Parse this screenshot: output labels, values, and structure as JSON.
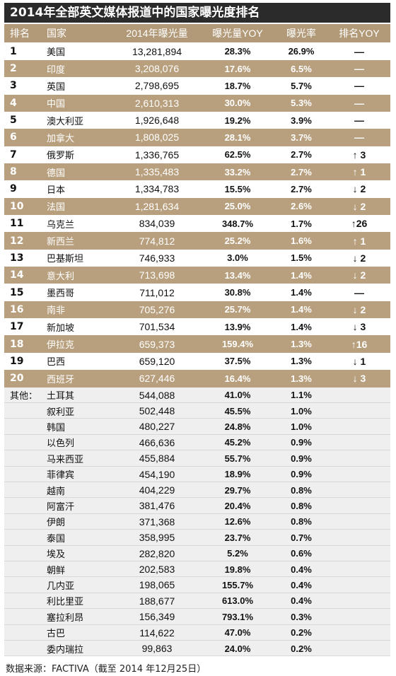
{
  "title": "2014年全部英文媒体报道中的国家曝光度排名",
  "headers": {
    "rank": "排名",
    "country": "国家",
    "exposure": "2014年曝光量",
    "exposure_yoy": "曝光量YOY",
    "rate": "曝光率",
    "rank_yoy": "排名YOY"
  },
  "top20": [
    {
      "rank": "1",
      "country": "美国",
      "exposure": "13,281,894",
      "yoy": "28.3%",
      "rate": "26.9%",
      "rank_yoy": "—"
    },
    {
      "rank": "2",
      "country": "印度",
      "exposure": "3,208,076",
      "yoy": "17.6%",
      "rate": "6.5%",
      "rank_yoy": "—"
    },
    {
      "rank": "3",
      "country": "英国",
      "exposure": "2,798,695",
      "yoy": "18.7%",
      "rate": "5.7%",
      "rank_yoy": "—"
    },
    {
      "rank": "4",
      "country": "中国",
      "exposure": "2,610,313",
      "yoy": "30.0%",
      "rate": "5.3%",
      "rank_yoy": "—"
    },
    {
      "rank": "5",
      "country": "澳大利亚",
      "exposure": "1,926,648",
      "yoy": "19.2%",
      "rate": "3.9%",
      "rank_yoy": "—"
    },
    {
      "rank": "6",
      "country": "加拿大",
      "exposure": "1,808,025",
      "yoy": "28.1%",
      "rate": "3.7%",
      "rank_yoy": "—"
    },
    {
      "rank": "7",
      "country": "俄罗斯",
      "exposure": "1,336,765",
      "yoy": "62.5%",
      "rate": "2.7%",
      "rank_yoy": "↑ 3"
    },
    {
      "rank": "8",
      "country": "德国",
      "exposure": "1,335,483",
      "yoy": "33.2%",
      "rate": "2.7%",
      "rank_yoy": "↑ 1"
    },
    {
      "rank": "9",
      "country": "日本",
      "exposure": "1,334,783",
      "yoy": "15.5%",
      "rate": "2.7%",
      "rank_yoy": "↓ 2"
    },
    {
      "rank": "10",
      "country": "法国",
      "exposure": "1,281,634",
      "yoy": "25.0%",
      "rate": "2.6%",
      "rank_yoy": "↓ 2"
    },
    {
      "rank": "11",
      "country": "乌克兰",
      "exposure": "834,039",
      "yoy": "348.7%",
      "rate": "1.7%",
      "rank_yoy": "↑26"
    },
    {
      "rank": "12",
      "country": "新西兰",
      "exposure": "774,812",
      "yoy": "25.2%",
      "rate": "1.6%",
      "rank_yoy": "↑ 1"
    },
    {
      "rank": "13",
      "country": "巴基斯坦",
      "exposure": "746,933",
      "yoy": "3.0%",
      "rate": "1.5%",
      "rank_yoy": "↓ 2"
    },
    {
      "rank": "14",
      "country": "意大利",
      "exposure": "713,698",
      "yoy": "13.4%",
      "rate": "1.4%",
      "rank_yoy": "↓ 2"
    },
    {
      "rank": "15",
      "country": "墨西哥",
      "exposure": "711,012",
      "yoy": "30.8%",
      "rate": "1.4%",
      "rank_yoy": "—"
    },
    {
      "rank": "16",
      "country": "南非",
      "exposure": "705,276",
      "yoy": "25.7%",
      "rate": "1.4%",
      "rank_yoy": "↓ 2"
    },
    {
      "rank": "17",
      "country": "新加坡",
      "exposure": "701,534",
      "yoy": "13.9%",
      "rate": "1.4%",
      "rank_yoy": "↓ 3"
    },
    {
      "rank": "18",
      "country": "伊拉克",
      "exposure": "659,373",
      "yoy": "159.4%",
      "rate": "1.3%",
      "rank_yoy": "↑16"
    },
    {
      "rank": "19",
      "country": "巴西",
      "exposure": "659,120",
      "yoy": "37.5%",
      "rate": "1.3%",
      "rank_yoy": "↓ 1"
    },
    {
      "rank": "20",
      "country": "西班牙",
      "exposure": "627,446",
      "yoy": "16.4%",
      "rate": "1.3%",
      "rank_yoy": "↓ 3"
    }
  ],
  "others_label": "其他：",
  "others": [
    {
      "country": "土耳其",
      "exposure": "544,088",
      "yoy": "41.0%",
      "rate": "1.1%"
    },
    {
      "country": "叙利亚",
      "exposure": "502,448",
      "yoy": "45.5%",
      "rate": "1.0%"
    },
    {
      "country": "韩国",
      "exposure": "480,227",
      "yoy": "24.8%",
      "rate": "1.0%"
    },
    {
      "country": "以色列",
      "exposure": "466,636",
      "yoy": "45.2%",
      "rate": "0.9%"
    },
    {
      "country": "马来西亚",
      "exposure": "455,884",
      "yoy": "55.7%",
      "rate": "0.9%"
    },
    {
      "country": "菲律宾",
      "exposure": "454,190",
      "yoy": "18.9%",
      "rate": "0.9%"
    },
    {
      "country": "越南",
      "exposure": "404,229",
      "yoy": "29.7%",
      "rate": "0.8%"
    },
    {
      "country": "阿富汗",
      "exposure": "381,476",
      "yoy": "20.4%",
      "rate": "0.8%"
    },
    {
      "country": "伊朗",
      "exposure": "371,368",
      "yoy": "12.6%",
      "rate": "0.8%"
    },
    {
      "country": "泰国",
      "exposure": "358,995",
      "yoy": "23.7%",
      "rate": "0.7%"
    },
    {
      "country": "埃及",
      "exposure": "282,820",
      "yoy": "5.2%",
      "rate": "0.6%"
    },
    {
      "country": "朝鲜",
      "exposure": "202,583",
      "yoy": "19.8%",
      "rate": "0.4%"
    },
    {
      "country": "几内亚",
      "exposure": "198,065",
      "yoy": "155.7%",
      "rate": "0.4%"
    },
    {
      "country": "利比里亚",
      "exposure": "188,677",
      "yoy": "613.0%",
      "rate": "0.4%"
    },
    {
      "country": "塞拉利昂",
      "exposure": "156,349",
      "yoy": "793.1%",
      "rate": "0.3%"
    },
    {
      "country": "古巴",
      "exposure": "114,622",
      "yoy": "47.0%",
      "rate": "0.2%"
    },
    {
      "country": "委内瑞拉",
      "exposure": "99,863",
      "yoy": "24.0%",
      "rate": "0.2%"
    }
  ],
  "source": "数据来源：FACTIVA（截至 2014 年12月25日）"
}
